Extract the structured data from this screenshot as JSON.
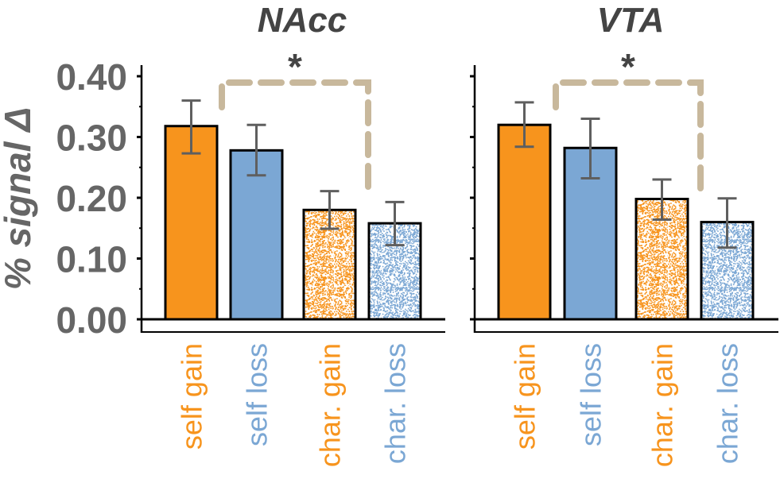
{
  "chart_data": {
    "type": "bar",
    "ylabel": "% signal Δ",
    "ylim": [
      0,
      0.4
    ],
    "yticks": [
      "0.00",
      "0.10",
      "0.20",
      "0.30",
      "0.40"
    ],
    "categories": [
      "self gain",
      "self loss",
      "char. gain",
      "char. loss"
    ],
    "colors": {
      "gain": "#F7941D",
      "loss": "#7BA7D4",
      "bracket": "#C8B89C",
      "error": "#5f5f5f",
      "axis_text": "#666666"
    },
    "panels": [
      {
        "title": "NAcc",
        "values": [
          0.318,
          0.278,
          0.18,
          0.158
        ],
        "err_low": [
          0.273,
          0.237,
          0.149,
          0.122
        ],
        "err_high": [
          0.36,
          0.32,
          0.211,
          0.193
        ],
        "significance": {
          "from": "self loss",
          "to": "char. loss",
          "label": "*"
        }
      },
      {
        "title": "VTA",
        "values": [
          0.32,
          0.282,
          0.198,
          0.16
        ],
        "err_low": [
          0.284,
          0.232,
          0.164,
          0.118
        ],
        "err_high": [
          0.357,
          0.33,
          0.23,
          0.199
        ],
        "significance": {
          "from": "self loss",
          "to": "char. loss",
          "label": "*"
        }
      }
    ]
  }
}
